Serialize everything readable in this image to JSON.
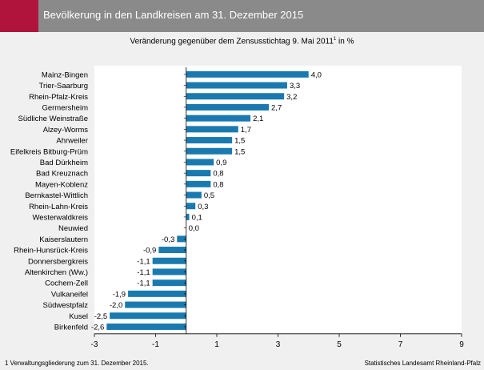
{
  "header": {
    "title": "Bevölkerung in den Landkreisen am 31. Dezember 2015",
    "accent_color": "#b0143c",
    "bar_color": "#8a8a8a"
  },
  "subtitle": {
    "text": "Veränderung gegenüber dem Zensusstichtag 9. Mai 2011",
    "sup": "1",
    "unit": " in %"
  },
  "footer": {
    "footnote": "1 Verwaltungsgliederung zum 31. Dezember 2015.",
    "source": "Statistisches Landesamt Rheinland-Pfalz"
  },
  "chart_data": {
    "type": "bar",
    "orientation": "horizontal",
    "bar_color": "#1a7ab0",
    "categories": [
      "Mainz-Bingen",
      "Trier-Saarburg",
      "Rhein-Pfalz-Kreis",
      "Germersheim",
      "Südliche Weinstraße",
      "Alzey-Worms",
      "Ahrweiler",
      "Eifelkreis Bitburg-Prüm",
      "Bad Dürkheim",
      "Bad Kreuznach",
      "Mayen-Koblenz",
      "Bernkastel-Wittlich",
      "Rhein-Lahn-Kreis",
      "Westerwaldkreis",
      "Neuwied",
      "Kaiserslautern",
      "Rhein-Hunsrück-Kreis",
      "Donnersbergkreis",
      "Altenkirchen (Ww.)",
      "Cochem-Zell",
      "Vulkaneifel",
      "Südwestpfalz",
      "Kusel",
      "Birkenfeld"
    ],
    "values": [
      4.0,
      3.3,
      3.2,
      2.7,
      2.1,
      1.7,
      1.5,
      1.5,
      0.9,
      0.8,
      0.8,
      0.5,
      0.3,
      0.1,
      0.0,
      -0.3,
      -0.9,
      -1.1,
      -1.1,
      -1.1,
      -1.9,
      -2.0,
      -2.5,
      -2.6
    ],
    "value_labels": [
      "4,0",
      "3,3",
      "3,2",
      "2,7",
      "2,1",
      "1,7",
      "1,5",
      "1,5",
      "0,9",
      "0,8",
      "0,8",
      "0,5",
      "0,3",
      "0,1",
      "0,0",
      "-0,3",
      "-0,9",
      "-1,1",
      "-1,1",
      "-1,1",
      "-1,9",
      "-2,0",
      "-2,5",
      "-2,6"
    ],
    "x_ticks": [
      -3,
      -1,
      1,
      3,
      5,
      7,
      9
    ],
    "x_tick_labels": [
      "-3",
      "-1",
      "1",
      "3",
      "5",
      "7",
      "9"
    ],
    "xlim": [
      -3,
      9
    ],
    "grid": false,
    "legend": "none"
  }
}
